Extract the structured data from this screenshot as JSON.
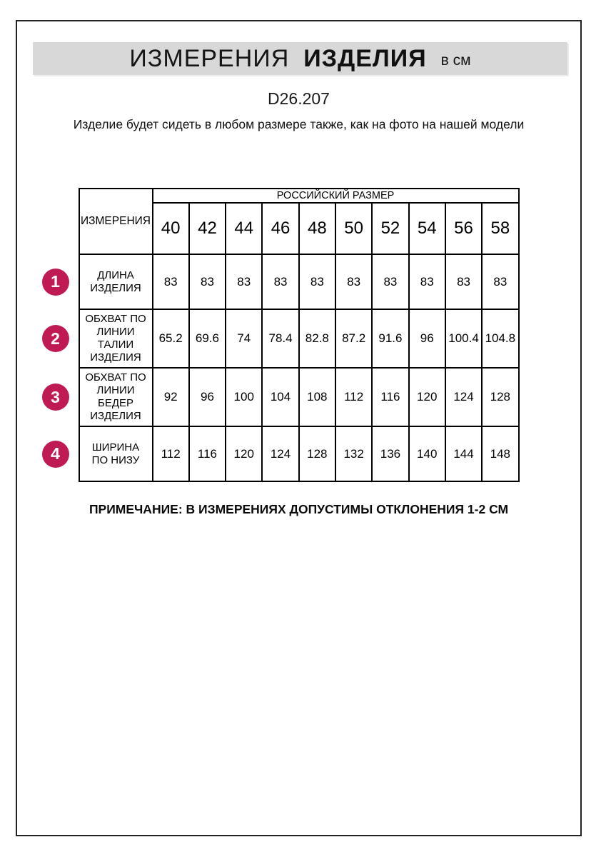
{
  "page": {
    "banner": {
      "title_main": "ИЗМЕРЕНИЯ",
      "title_bold": "ИЗДЕЛИЯ",
      "title_units": "в см"
    },
    "model_code": "D26.207",
    "subtitle": "Изделие будет сидеть в любом размере также, как на фото на нашей модели",
    "note": "ПРИМЕЧАНИЕ: В ИЗМЕРЕНИЯХ ДОПУСТИМЫ ОТКЛОНЕНИЯ 1-2 СМ"
  },
  "table": {
    "size_group_header": "РОССИЙСКИЙ РАЗМЕР",
    "measurements_header": "ИЗМЕРЕНИЯ",
    "sizes": [
      "40",
      "42",
      "44",
      "46",
      "48",
      "50",
      "52",
      "54",
      "56",
      "58"
    ],
    "rows": [
      {
        "num": "1",
        "label": "ДЛИНА ИЗДЕЛИЯ",
        "values": [
          "83",
          "83",
          "83",
          "83",
          "83",
          "83",
          "83",
          "83",
          "83",
          "83"
        ]
      },
      {
        "num": "2",
        "label": "ОБХВАТ ПО ЛИНИИ ТАЛИИ ИЗДЕЛИЯ",
        "values": [
          "65.2",
          "69.6",
          "74",
          "78.4",
          "82.8",
          "87.2",
          "91.6",
          "96",
          "100.4",
          "104.8"
        ]
      },
      {
        "num": "3",
        "label": "ОБХВАТ ПО ЛИНИИ БЕДЕР ИЗДЕЛИЯ",
        "values": [
          "92",
          "96",
          "100",
          "104",
          "108",
          "112",
          "116",
          "120",
          "124",
          "128"
        ]
      },
      {
        "num": "4",
        "label": "ШИРИНА ПО НИЗУ",
        "values": [
          "112",
          "116",
          "120",
          "124",
          "128",
          "132",
          "136",
          "140",
          "144",
          "148"
        ]
      }
    ]
  },
  "colors": {
    "accent": "#c01a55",
    "banner_bg": "#d8d8d8",
    "border": "#000000"
  }
}
